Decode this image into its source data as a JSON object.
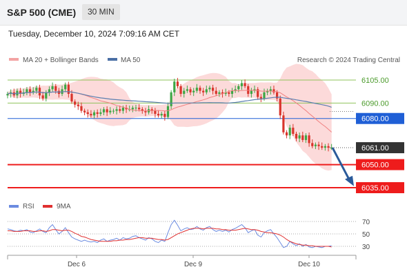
{
  "header": {
    "title": "S&P 500 (CME)",
    "timeframe": "30 MIN"
  },
  "timestamp": "Tuesday, December 10, 2024 7:09:16 AM CET",
  "legend": {
    "ma20": "MA 20 + Bollinger Bands",
    "ma50": "MA 50",
    "copyright": "Research © 2024 Trading Central"
  },
  "rsi_legend": {
    "rsi": "RSI",
    "ma": "9MA"
  },
  "colors": {
    "up": "#3da645",
    "down": "#d9342b",
    "bollinger": "#fcd3d3",
    "ma20": "#f08080",
    "ma50": "#5b7fb0",
    "resistance": "#8fc35b",
    "pivot": "#1f5fd6",
    "support": "#ee1c1c",
    "arrow": "#2b5a9a",
    "rsi": "#6b8be0",
    "rsi_ma": "#e03030"
  },
  "chart_data": {
    "type": "candlestick",
    "x_ticks": [
      "Dec 6",
      "Dec 9",
      "Dec 10"
    ],
    "y_range": [
      6028,
      6116
    ],
    "levels": [
      {
        "label": "6105.00",
        "value": 6105,
        "kind": "resistance"
      },
      {
        "label": "6090.00",
        "value": 6090,
        "kind": "resistance"
      },
      {
        "label": "6080.00",
        "value": 6080,
        "kind": "pivot"
      },
      {
        "label": "6061.00",
        "value": 6061,
        "kind": "last"
      },
      {
        "label": "6050.00",
        "value": 6050,
        "kind": "support"
      },
      {
        "label": "6035.00",
        "value": 6035,
        "kind": "support"
      }
    ],
    "closes": [
      6096,
      6097,
      6095,
      6098,
      6096,
      6097,
      6099,
      6097,
      6098,
      6100,
      6095,
      6093,
      6097,
      6099,
      6101,
      6098,
      6096,
      6099,
      6102,
      6096,
      6091,
      6089,
      6088,
      6085,
      6084,
      6083,
      6082,
      6084,
      6083,
      6084,
      6086,
      6084,
      6085,
      6085,
      6086,
      6085,
      6087,
      6086,
      6086,
      6087,
      6087,
      6086,
      6085,
      6084,
      6086,
      6085,
      6083,
      6082,
      6083,
      6081,
      6088,
      6097,
      6104,
      6101,
      6096,
      6098,
      6099,
      6097,
      6098,
      6100,
      6098,
      6097,
      6099,
      6100,
      6098,
      6096,
      6097,
      6096,
      6097,
      6096,
      6098,
      6099,
      6101,
      6103,
      6101,
      6096,
      6098,
      6099,
      6094,
      6093,
      6097,
      6098,
      6099,
      6097,
      6093,
      6082,
      6071,
      6069,
      6074,
      6070,
      6067,
      6069,
      6066,
      6069,
      6064,
      6062,
      6063,
      6062,
      6061,
      6062,
      6061,
      6061
    ],
    "ma50_end": 6081,
    "rsi": {
      "levels": [
        70,
        50,
        30
      ],
      "values": [
        58,
        57,
        55,
        54,
        56,
        55,
        57,
        53,
        52,
        55,
        58,
        54,
        52,
        60,
        65,
        57,
        50,
        54,
        60,
        52,
        45,
        42,
        40,
        38,
        40,
        38,
        37,
        38,
        36,
        40,
        42,
        38,
        40,
        41,
        43,
        40,
        44,
        42,
        43,
        46,
        47,
        44,
        42,
        40,
        44,
        42,
        38,
        36,
        40,
        38,
        52,
        65,
        72,
        64,
        55,
        58,
        60,
        57,
        58,
        62,
        58,
        56,
        60,
        62,
        57,
        54,
        56,
        54,
        56,
        53,
        57,
        59,
        62,
        65,
        60,
        52,
        55,
        57,
        48,
        45,
        52,
        55,
        57,
        50,
        44,
        36,
        28,
        30,
        38,
        34,
        31,
        34,
        30,
        33,
        29,
        28,
        30,
        29,
        28,
        30,
        30,
        31
      ],
      "ma_values": [
        55,
        55,
        54,
        54,
        54,
        55,
        55,
        55,
        54,
        54,
        55,
        55,
        54,
        55,
        57,
        57,
        56,
        55,
        56,
        56,
        54,
        51,
        49,
        46,
        45,
        43,
        41,
        40,
        39,
        38,
        38,
        38,
        38,
        39,
        39,
        40,
        40,
        41,
        41,
        42,
        43,
        44,
        44,
        43,
        43,
        43,
        42,
        41,
        41,
        40,
        41,
        44,
        47,
        50,
        52,
        54,
        56,
        58,
        59,
        59,
        59,
        58,
        59,
        59,
        59,
        58,
        58,
        57,
        57,
        56,
        56,
        56,
        57,
        58,
        59,
        58,
        57,
        57,
        56,
        54,
        53,
        52,
        52,
        51,
        50,
        48,
        45,
        41,
        38,
        36,
        34,
        33,
        32,
        32,
        31,
        31,
        30,
        30,
        30,
        30,
        30,
        29
      ]
    }
  }
}
